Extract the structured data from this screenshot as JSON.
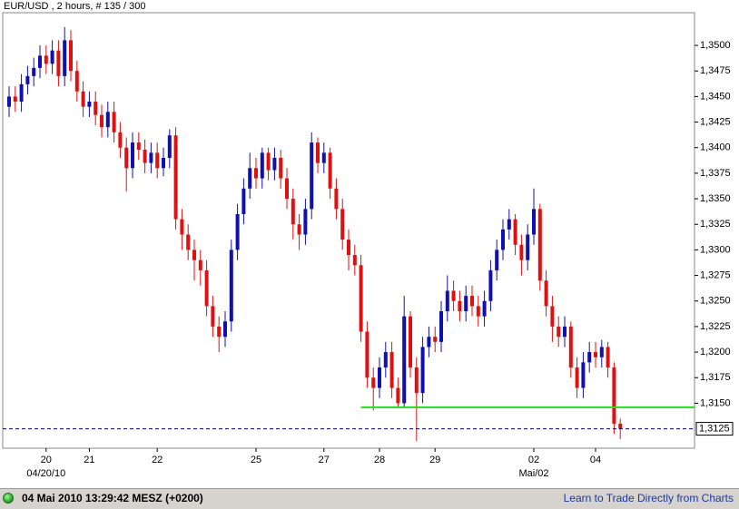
{
  "chart_data": {
    "type": "candlestick",
    "title": "EUR/USD , 2 hours, # 135 / 300",
    "categories": [
      null,
      null,
      null,
      null,
      null,
      null,
      "20",
      null,
      null,
      null,
      null,
      null,
      null,
      "21",
      null,
      null,
      null,
      null,
      null,
      null,
      null,
      null,
      null,
      null,
      "22",
      null,
      null,
      null,
      null,
      null,
      null,
      null,
      null,
      null,
      null,
      null,
      null,
      null,
      null,
      null,
      "25",
      null,
      null,
      null,
      null,
      null,
      null,
      null,
      null,
      null,
      null,
      "27",
      null,
      null,
      null,
      null,
      null,
      null,
      null,
      null,
      "28",
      null,
      null,
      null,
      null,
      null,
      null,
      null,
      null,
      "29",
      null,
      null,
      null,
      null,
      null,
      null,
      null,
      null,
      null,
      null,
      null,
      null,
      null,
      null,
      null,
      "02",
      null,
      null,
      null,
      null,
      null,
      null,
      null,
      null,
      null,
      "04",
      null,
      null,
      null,
      null
    ],
    "date_labels": [
      {
        "at": 6,
        "label": "04/20/10"
      },
      {
        "at": 85,
        "label": "Mai/02"
      }
    ],
    "open": [
      1.344,
      1.345,
      1.3445,
      1.3462,
      1.347,
      1.3478,
      1.349,
      1.3482,
      1.3495,
      1.347,
      1.3505,
      1.3475,
      1.3455,
      1.344,
      1.3445,
      1.3432,
      1.342,
      1.3435,
      1.3415,
      1.34,
      1.338,
      1.3405,
      1.3398,
      1.3385,
      1.3395,
      1.338,
      1.339,
      1.3412,
      1.333,
      1.3315,
      1.33,
      1.329,
      1.328,
      1.3245,
      1.3225,
      1.3215,
      1.323,
      1.33,
      1.3335,
      1.336,
      1.338,
      1.337,
      1.3395,
      1.3378,
      1.339,
      1.337,
      1.335,
      1.3325,
      1.3315,
      1.334,
      1.3405,
      1.3385,
      1.3395,
      1.336,
      1.334,
      1.331,
      1.3295,
      1.3285,
      1.322,
      1.3175,
      1.3165,
      1.3185,
      1.32,
      1.3165,
      1.315,
      1.3235,
      1.3185,
      1.316,
      1.3205,
      1.3215,
      1.321,
      1.324,
      1.326,
      1.325,
      1.324,
      1.3255,
      1.3245,
      1.3235,
      1.325,
      1.328,
      1.33,
      1.332,
      1.333,
      1.3305,
      1.329,
      1.3315,
      1.334,
      1.327,
      1.3245,
      1.3225,
      1.3215,
      1.3225,
      1.3185,
      1.3165,
      1.319,
      1.32,
      1.3195,
      1.3205,
      1.3185,
      1.313
    ],
    "high": [
      1.346,
      1.346,
      1.3472,
      1.348,
      1.3488,
      1.35,
      1.35,
      1.3505,
      1.3505,
      1.3518,
      1.3515,
      1.3485,
      1.3465,
      1.3455,
      1.3455,
      1.3442,
      1.3445,
      1.3445,
      1.3425,
      1.341,
      1.3415,
      1.3415,
      1.3408,
      1.3405,
      1.3405,
      1.34,
      1.3418,
      1.342,
      1.334,
      1.3325,
      1.331,
      1.33,
      1.329,
      1.3255,
      1.3235,
      1.324,
      1.331,
      1.3345,
      1.337,
      1.3395,
      1.339,
      1.34,
      1.34,
      1.34,
      1.3398,
      1.338,
      1.336,
      1.3335,
      1.335,
      1.3415,
      1.341,
      1.3405,
      1.34,
      1.337,
      1.335,
      1.332,
      1.3305,
      1.3295,
      1.323,
      1.3185,
      1.3195,
      1.321,
      1.321,
      1.3175,
      1.3255,
      1.324,
      1.3195,
      1.3215,
      1.3225,
      1.3225,
      1.325,
      1.3275,
      1.327,
      1.326,
      1.3265,
      1.3265,
      1.3255,
      1.326,
      1.329,
      1.331,
      1.333,
      1.334,
      1.3335,
      1.3315,
      1.3325,
      1.336,
      1.3345,
      1.328,
      1.3255,
      1.3235,
      1.3235,
      1.323,
      1.3195,
      1.32,
      1.321,
      1.321,
      1.3212,
      1.321,
      1.319,
      1.3135
    ],
    "low": [
      1.343,
      1.3435,
      1.3435,
      1.3452,
      1.346,
      1.3468,
      1.3472,
      1.3472,
      1.346,
      1.346,
      1.3465,
      1.3445,
      1.343,
      1.343,
      1.3422,
      1.341,
      1.341,
      1.3405,
      1.339,
      1.3357,
      1.337,
      1.3388,
      1.3375,
      1.3375,
      1.337,
      1.3372,
      1.338,
      1.332,
      1.33,
      1.329,
      1.327,
      1.3265,
      1.3235,
      1.3215,
      1.32,
      1.3205,
      1.322,
      1.329,
      1.3325,
      1.335,
      1.336,
      1.336,
      1.3368,
      1.3368,
      1.336,
      1.334,
      1.331,
      1.33,
      1.3305,
      1.333,
      1.3375,
      1.3375,
      1.335,
      1.333,
      1.33,
      1.328,
      1.3275,
      1.321,
      1.3165,
      1.3143,
      1.3155,
      1.3175,
      1.3155,
      1.3145,
      1.3145,
      1.3175,
      1.3113,
      1.315,
      1.3195,
      1.32,
      1.32,
      1.323,
      1.324,
      1.323,
      1.323,
      1.3235,
      1.3225,
      1.3225,
      1.324,
      1.327,
      1.329,
      1.331,
      1.3295,
      1.3275,
      1.328,
      1.3305,
      1.326,
      1.3235,
      1.321,
      1.3205,
      1.3205,
      1.3175,
      1.3155,
      1.3155,
      1.318,
      1.3185,
      1.3185,
      1.3175,
      1.312,
      1.3115
    ],
    "close": [
      1.345,
      1.3445,
      1.3462,
      1.347,
      1.3478,
      1.349,
      1.3482,
      1.3495,
      1.347,
      1.3505,
      1.3475,
      1.3455,
      1.344,
      1.3445,
      1.3432,
      1.342,
      1.3435,
      1.3415,
      1.34,
      1.338,
      1.3405,
      1.3398,
      1.3385,
      1.3395,
      1.338,
      1.339,
      1.3412,
      1.333,
      1.3315,
      1.33,
      1.329,
      1.328,
      1.3245,
      1.3225,
      1.3215,
      1.323,
      1.33,
      1.3335,
      1.336,
      1.338,
      1.337,
      1.3395,
      1.3378,
      1.339,
      1.337,
      1.335,
      1.3325,
      1.3315,
      1.334,
      1.3405,
      1.3385,
      1.3395,
      1.336,
      1.334,
      1.331,
      1.3295,
      1.3285,
      1.322,
      1.3175,
      1.3165,
      1.3185,
      1.32,
      1.3165,
      1.315,
      1.3235,
      1.3185,
      1.316,
      1.3205,
      1.3215,
      1.321,
      1.324,
      1.326,
      1.325,
      1.324,
      1.3255,
      1.3245,
      1.3235,
      1.325,
      1.328,
      1.33,
      1.332,
      1.333,
      1.3305,
      1.329,
      1.3315,
      1.334,
      1.327,
      1.3245,
      1.3225,
      1.3215,
      1.3225,
      1.3185,
      1.3165,
      1.319,
      1.32,
      1.3195,
      1.3205,
      1.3185,
      1.313,
      1.3125
    ],
    "up_color": "#1010b0",
    "down_color": "#e01010",
    "ylim": [
      1.3106,
      1.3532
    ],
    "yticks": [
      {
        "value": 1.315,
        "label": "1,3150"
      },
      {
        "value": 1.3175,
        "label": "1,3175"
      },
      {
        "value": 1.32,
        "label": "1,3200"
      },
      {
        "value": 1.3225,
        "label": "1,3225"
      },
      {
        "value": 1.325,
        "label": "1,3250"
      },
      {
        "value": 1.3275,
        "label": "1,3275"
      },
      {
        "value": 1.33,
        "label": "1,3300"
      },
      {
        "value": 1.3325,
        "label": "1,3325"
      },
      {
        "value": 1.335,
        "label": "1,3350"
      },
      {
        "value": 1.3375,
        "label": "1,3375"
      },
      {
        "value": 1.34,
        "label": "1,3400"
      },
      {
        "value": 1.3425,
        "label": "1,3425"
      },
      {
        "value": 1.345,
        "label": "1,3450"
      },
      {
        "value": 1.3475,
        "label": "1,3475"
      },
      {
        "value": 1.35,
        "label": "1,3500"
      }
    ],
    "support_line": {
      "value": 1.3146,
      "color": "#22dd22"
    },
    "current_price": {
      "value": 1.3125,
      "label": "1,3125",
      "color": "#000080"
    }
  },
  "status_bar": {
    "timestamp": "04 Mai 2010 13:29:42  MESZ (+0200)",
    "link": "Learn to Trade Directly from Charts"
  }
}
